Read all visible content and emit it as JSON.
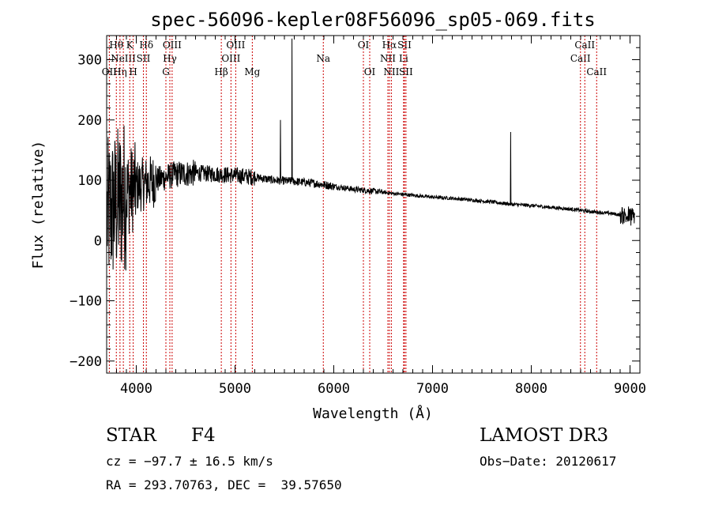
{
  "chart_data": {
    "type": "line",
    "title": "spec-56096-kepler08F56096_sp05-069.fits",
    "xlabel": "Wavelength (Å)",
    "ylabel": "Flux (relative)",
    "xlim": [
      3700,
      9100
    ],
    "ylim": [
      -220,
      340
    ],
    "x_ticks": [
      4000,
      5000,
      6000,
      7000,
      8000,
      9000
    ],
    "y_ticks": [
      -200,
      -100,
      0,
      100,
      200,
      300
    ],
    "emission_lines": [
      {
        "wavelength": 3727,
        "label": "OII",
        "row": 3
      },
      {
        "wavelength": 3798,
        "label": "Hθ",
        "row": 1
      },
      {
        "wavelength": 3835,
        "label": "Hη",
        "row": 3
      },
      {
        "wavelength": 3869,
        "label": "NeIII",
        "row": 2
      },
      {
        "wavelength": 3934,
        "label": "K",
        "row": 1
      },
      {
        "wavelength": 3969,
        "label": "H",
        "row": 3
      },
      {
        "wavelength": 4072,
        "label": "SII",
        "row": 2
      },
      {
        "wavelength": 4102,
        "label": "Hδ",
        "row": 1
      },
      {
        "wavelength": 4300,
        "label": "G",
        "row": 3
      },
      {
        "wavelength": 4340,
        "label": "Hγ",
        "row": 2
      },
      {
        "wavelength": 4363,
        "label": "OIII",
        "row": 1
      },
      {
        "wavelength": 4861,
        "label": "Hβ",
        "row": 3
      },
      {
        "wavelength": 4959,
        "label": "OIII",
        "row": 2
      },
      {
        "wavelength": 5007,
        "label": "OIII",
        "row": 1
      },
      {
        "wavelength": 5175,
        "label": "Mg",
        "row": 3
      },
      {
        "wavelength": 5894,
        "label": "Na",
        "row": 2
      },
      {
        "wavelength": 6300,
        "label": "OI",
        "row": 1
      },
      {
        "wavelength": 6364,
        "label": "OI",
        "row": 3
      },
      {
        "wavelength": 6548,
        "label": "NII",
        "row": 2
      },
      {
        "wavelength": 6563,
        "label": "Hα",
        "row": 1
      },
      {
        "wavelength": 6583,
        "label": "NII",
        "row": 3
      },
      {
        "wavelength": 6707,
        "label": "Li",
        "row": 2
      },
      {
        "wavelength": 6716,
        "label": "SII",
        "row": 1
      },
      {
        "wavelength": 6731,
        "label": "SII",
        "row": 3
      },
      {
        "wavelength": 8498,
        "label": "CaII",
        "row": 2
      },
      {
        "wavelength": 8542,
        "label": "CaII",
        "row": 1
      },
      {
        "wavelength": 8662,
        "label": "CaII",
        "row": 3
      }
    ],
    "spectrum_anchors": {
      "x": [
        3700,
        3800,
        3900,
        4000,
        4200,
        4400,
        4600,
        4800,
        5000,
        5200,
        5400,
        5600,
        5800,
        6000,
        6200,
        6400,
        6600,
        6800,
        7000,
        7200,
        7400,
        7600,
        7800,
        8000,
        8200,
        8400,
        8600,
        8800,
        9000,
        9050
      ],
      "y": [
        40,
        60,
        80,
        90,
        100,
        110,
        112,
        110,
        108,
        105,
        100,
        98,
        95,
        90,
        85,
        82,
        78,
        75,
        72,
        70,
        67,
        64,
        60,
        58,
        55,
        52,
        48,
        45,
        40,
        40
      ]
    },
    "spectrum_spikes": [
      {
        "x": 5460,
        "y": 200
      },
      {
        "x": 5577,
        "y": 335
      },
      {
        "x": 7790,
        "y": 180
      }
    ]
  },
  "info": {
    "class_label": "STAR",
    "subclass": "F4",
    "survey": "LAMOST DR3",
    "cz": "cz = −97.7 ± 16.5 km/s",
    "obs_date": "Obs−Date: 20120617",
    "coords": "RA = 293.70763, DEC =  39.57650"
  }
}
